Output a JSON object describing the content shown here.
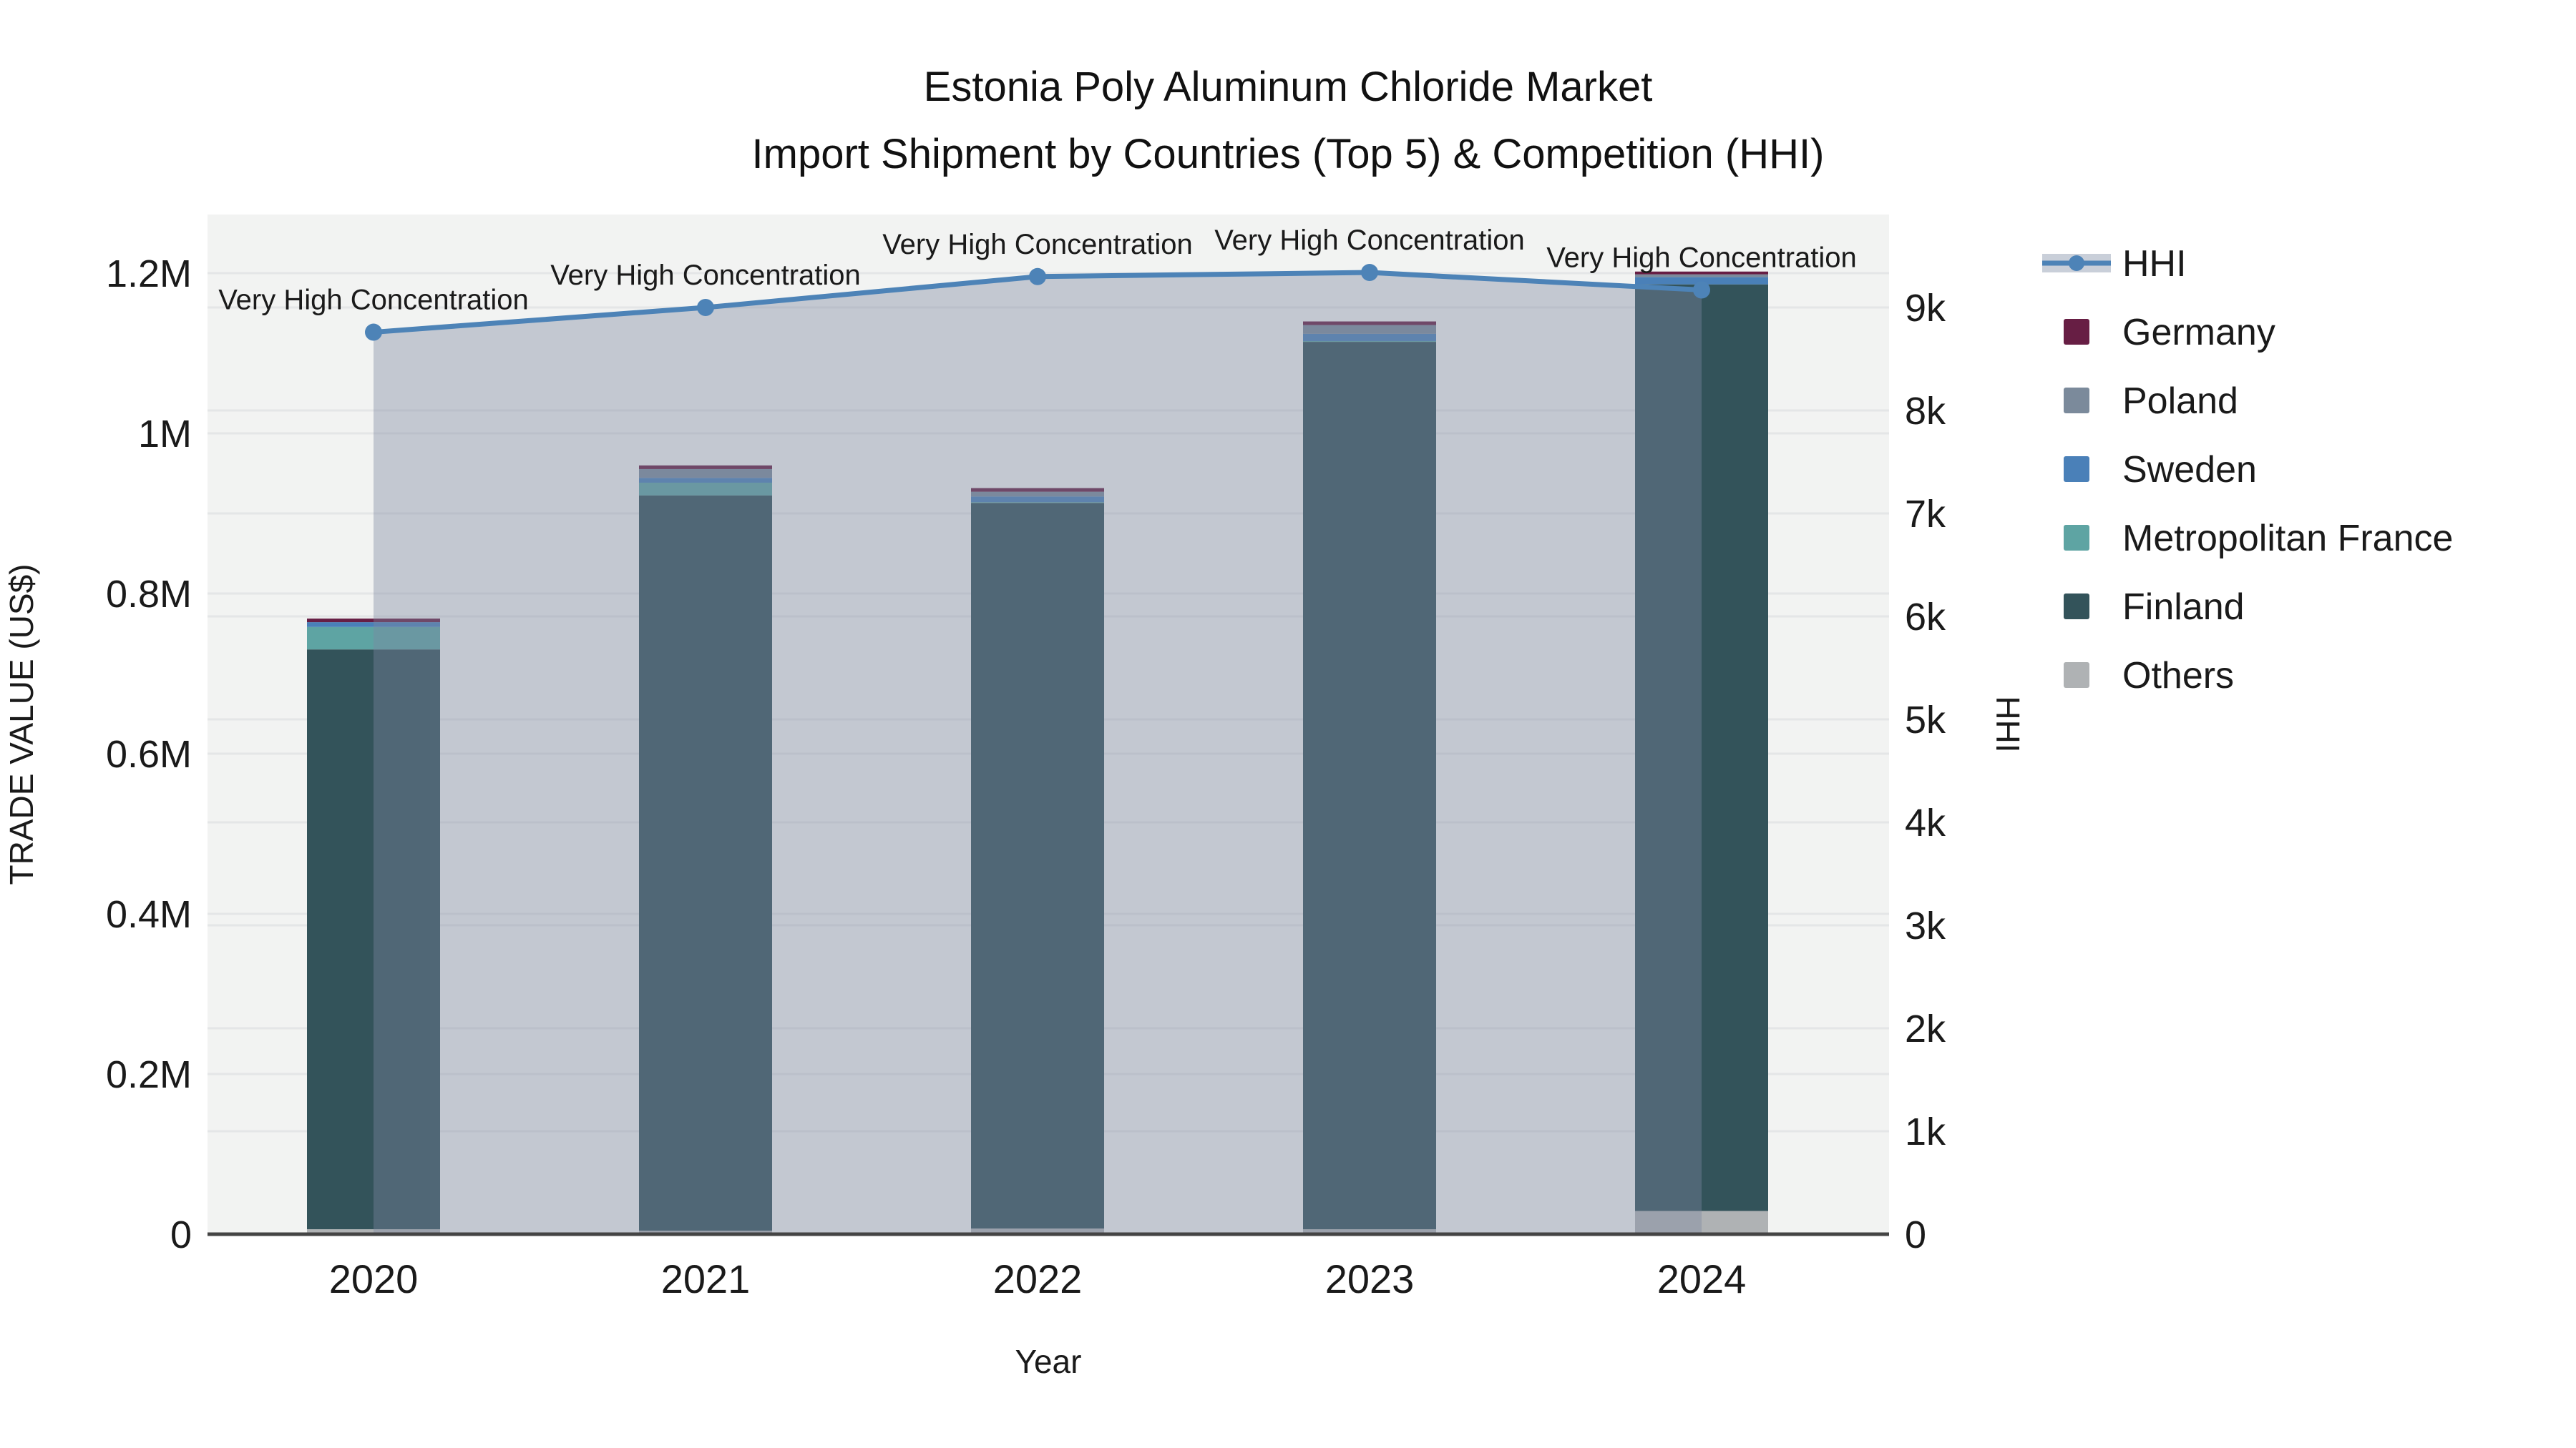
{
  "title": {
    "line1": "Estonia Poly Aluminum Chloride Market",
    "line2": "Import Shipment by Countries (Top 5) & Competition (HHI)"
  },
  "axes": {
    "x_title": "Year",
    "y_left_title": "TRADE VALUE (US$)",
    "y_right_title": "HHI",
    "x_ticks": [
      "2020",
      "2021",
      "2022",
      "2023",
      "2024"
    ],
    "y_left_ticks": [
      {
        "label": "0",
        "value": 0
      },
      {
        "label": "0.2M",
        "value": 200000
      },
      {
        "label": "0.4M",
        "value": 400000
      },
      {
        "label": "0.6M",
        "value": 600000
      },
      {
        "label": "0.8M",
        "value": 800000
      },
      {
        "label": "1M",
        "value": 1000000
      },
      {
        "label": "1.2M",
        "value": 1200000
      }
    ],
    "y_right_ticks": [
      {
        "label": "0",
        "value": 0
      },
      {
        "label": "1k",
        "value": 1000
      },
      {
        "label": "2k",
        "value": 2000
      },
      {
        "label": "3k",
        "value": 3000
      },
      {
        "label": "4k",
        "value": 4000
      },
      {
        "label": "5k",
        "value": 5000
      },
      {
        "label": "6k",
        "value": 6000
      },
      {
        "label": "7k",
        "value": 7000
      },
      {
        "label": "8k",
        "value": 8000
      },
      {
        "label": "9k",
        "value": 9000
      }
    ]
  },
  "legend": {
    "items": [
      {
        "label": "HHI",
        "color": "#4d83b7",
        "type": "line"
      },
      {
        "label": "Germany",
        "color": "#671e44",
        "type": "box"
      },
      {
        "label": "Poland",
        "color": "#7b8a9b",
        "type": "box"
      },
      {
        "label": "Sweden",
        "color": "#4a80b8",
        "type": "box"
      },
      {
        "label": "Metropolitan France",
        "color": "#5ea4a3",
        "type": "box"
      },
      {
        "label": "Finland",
        "color": "#33535a",
        "type": "box"
      },
      {
        "label": "Others",
        "color": "#afb2b4",
        "type": "box"
      }
    ]
  },
  "chart_data": {
    "type": "stacked-bar+line",
    "title": "Estonia Poly Aluminum Chloride Market Import Shipment by Countries (Top 5) & Competition (HHI)",
    "xlabel": "Year",
    "ylabel_left": "TRADE VALUE (US$)",
    "ylabel_right": "HHI",
    "categories": [
      "2020",
      "2021",
      "2022",
      "2023",
      "2024"
    ],
    "bar_series": [
      {
        "name": "Others",
        "color": "#afb2b4",
        "values": [
          6200,
          4400,
          7100,
          6200,
          29000
        ]
      },
      {
        "name": "Finland",
        "color": "#33535a",
        "values": [
          724000,
          918000,
          906000,
          1108000,
          1157000
        ]
      },
      {
        "name": "Metropolitan France",
        "color": "#5ea4a3",
        "values": [
          28000,
          16000,
          1000,
          1000,
          0
        ]
      },
      {
        "name": "Sweden",
        "color": "#4a80b8",
        "values": [
          6000,
          6000,
          7000,
          9000,
          9000
        ]
      },
      {
        "name": "Poland",
        "color": "#7b8a9b",
        "values": [
          0,
          11000,
          6000,
          11000,
          3500
        ]
      },
      {
        "name": "Germany",
        "color": "#671e44",
        "values": [
          4500,
          4500,
          4500,
          4500,
          3500
        ]
      }
    ],
    "line_series": {
      "name": "HHI",
      "axis": "right",
      "color": "#4d83b7",
      "fill_color": "rgba(124,136,160,0.40)",
      "values": [
        8760,
        9000,
        9300,
        9340,
        9170
      ]
    },
    "annotation_label": "Very High Concentration",
    "y_left_range": [
      0,
      1273000
    ],
    "y_right_range": [
      0,
      9900
    ],
    "grid": true,
    "legend_position": "right",
    "plot_bg": "#f2f3f2",
    "grid_color": "#e4e6e7",
    "axis_line_color": "#444444"
  }
}
